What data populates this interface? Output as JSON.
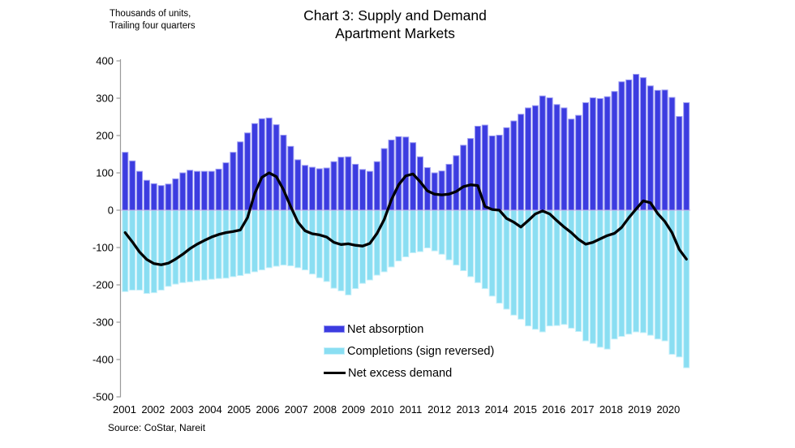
{
  "chart_data": {
    "type": "bar",
    "combo": "bars + line overlay",
    "title_lines": [
      "Chart 3: Supply and Demand",
      "Apartment Markets"
    ],
    "note_lines": [
      "Thousands of units,",
      "Trailing four quarters"
    ],
    "source": "Source: CoStar, Nareit",
    "frequency": "quarterly",
    "start": "2001Q1",
    "end": "2020Q3",
    "ylim": [
      -500,
      400
    ],
    "y_ticks": [
      400,
      300,
      200,
      100,
      0,
      -100,
      -200,
      -300,
      -400,
      -500
    ],
    "x_tick_labels": [
      "2001",
      "2002",
      "2003",
      "2004",
      "2005",
      "2006",
      "2007",
      "2008",
      "2009",
      "2010",
      "2011",
      "2012",
      "2013",
      "2014",
      "2015",
      "2016",
      "2017",
      "2018",
      "2019",
      "2020"
    ],
    "grid": "zero line only",
    "legend_position": "inside bottom-center",
    "zero_line_color": "#c9aee8",
    "series": [
      {
        "name": "Net absorption",
        "type": "bar",
        "color": "#3c3ce0",
        "edge_color": "#9a9af2",
        "values": [
          155,
          132,
          104,
          80,
          71,
          66,
          70,
          84,
          100,
          107,
          104,
          104,
          104,
          110,
          127,
          155,
          183,
          207,
          232,
          245,
          247,
          229,
          201,
          171,
          135,
          120,
          115,
          111,
          113,
          130,
          142,
          143,
          123,
          109,
          104,
          130,
          165,
          188,
          197,
          196,
          181,
          143,
          114,
          100,
          105,
          123,
          146,
          174,
          192,
          225,
          228,
          199,
          201,
          221,
          239,
          257,
          274,
          280,
          306,
          301,
          283,
          274,
          244,
          254,
          288,
          301,
          299,
          304,
          318,
          344,
          349,
          364,
          355,
          333,
          321,
          322,
          302,
          251,
          288
        ]
      },
      {
        "name": "Completions (sign reversed)",
        "type": "bar",
        "color": "#8adef2",
        "edge_color": "#c7f0fa",
        "values": [
          -218,
          -214,
          -214,
          -223,
          -221,
          -214,
          -204,
          -198,
          -194,
          -192,
          -189,
          -187,
          -185,
          -183,
          -182,
          -178,
          -175,
          -170,
          -165,
          -160,
          -154,
          -150,
          -147,
          -149,
          -154,
          -160,
          -171,
          -181,
          -191,
          -209,
          -216,
          -227,
          -210,
          -196,
          -187,
          -174,
          -165,
          -152,
          -136,
          -125,
          -114,
          -111,
          -101,
          -109,
          -118,
          -133,
          -147,
          -162,
          -178,
          -194,
          -210,
          -230,
          -249,
          -265,
          -281,
          -292,
          -310,
          -319,
          -326,
          -310,
          -309,
          -306,
          -316,
          -325,
          -350,
          -357,
          -367,
          -372,
          -345,
          -338,
          -332,
          -326,
          -328,
          -335,
          -345,
          -350,
          -386,
          -393,
          -422
        ]
      },
      {
        "name": "Net excess demand",
        "type": "line",
        "color": "#000000",
        "values": [
          -60,
          -85,
          -112,
          -132,
          -143,
          -146,
          -142,
          -131,
          -118,
          -103,
          -91,
          -81,
          -72,
          -65,
          -60,
          -57,
          -53,
          -20,
          45,
          88,
          100,
          90,
          55,
          10,
          -32,
          -55,
          -63,
          -66,
          -72,
          -86,
          -92,
          -90,
          -94,
          -96,
          -89,
          -62,
          -25,
          28,
          68,
          92,
          97,
          76,
          52,
          43,
          41,
          43,
          50,
          63,
          68,
          66,
          10,
          2,
          0,
          -22,
          -32,
          -45,
          -28,
          -10,
          -2,
          -10,
          -28,
          -45,
          -60,
          -78,
          -91,
          -86,
          -77,
          -68,
          -62,
          -46,
          -20,
          3,
          25,
          20,
          -9,
          -30,
          -60,
          -105,
          -131
        ]
      }
    ]
  }
}
